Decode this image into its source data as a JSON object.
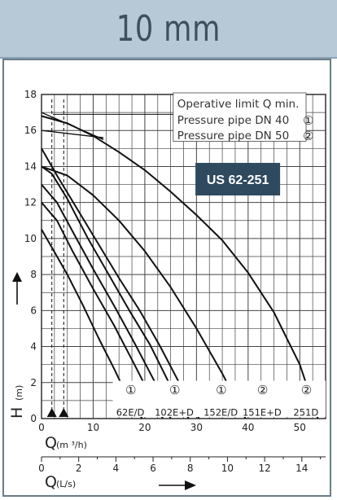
{
  "header": {
    "title": "10 mm"
  },
  "colors": {
    "header_bg": "#b7c9d7",
    "badge_bg": "#2f4a5f",
    "curve": "#111111",
    "grid": "#333333"
  },
  "chart_data": {
    "type": "line",
    "badge": "US 62-251",
    "x_axis": {
      "label": "Q",
      "unit": "(m ³/h)",
      "range": [
        0,
        55
      ],
      "ticks": [
        0,
        10,
        20,
        30,
        40,
        50
      ],
      "tick_labels": [
        "0",
        "10",
        "20",
        "30",
        "40",
        "50"
      ]
    },
    "x2_axis": {
      "label": "Q",
      "unit": "(L/s)",
      "ticks": [
        0,
        2,
        4,
        6,
        8,
        10,
        12,
        14
      ],
      "tick_labels": [
        "0",
        "2",
        "4",
        "6",
        "8",
        "10",
        "12",
        "14"
      ]
    },
    "y_axis": {
      "label": "H",
      "unit": "(m)",
      "range": [
        0,
        18
      ],
      "ticks": [
        0,
        2,
        4,
        6,
        8,
        10,
        12,
        14,
        16,
        18
      ],
      "tick_labels": [
        "0",
        "2",
        "4",
        "6",
        "8",
        "10",
        "12",
        "14",
        "16",
        "18"
      ]
    },
    "grid": true,
    "legend": [
      {
        "text": "Operative limit Q min.",
        "symbol": ""
      },
      {
        "text": "Pressure pipe DN 40",
        "symbol": "①"
      },
      {
        "text": "Pressure pipe DN 50",
        "symbol": "②"
      }
    ],
    "series": [
      {
        "name": "62E/D",
        "symbol": "①",
        "x": [
          0,
          2,
          5,
          8,
          11,
          14,
          17,
          19.5
        ],
        "y": [
          10.5,
          9.5,
          8.0,
          6.3,
          4.5,
          2.8,
          1.0,
          0
        ]
      },
      {
        "name": "102E+D",
        "symbol": "①",
        "x": [
          0,
          3,
          6,
          10,
          14,
          18,
          21,
          23.5
        ],
        "y": [
          12.0,
          11.0,
          9.3,
          7.2,
          5.2,
          3.0,
          1.3,
          0
        ]
      },
      {
        "name": "102E+D",
        "symbol": "①",
        "x": [
          0,
          3,
          6,
          10,
          14,
          18,
          22,
          25
        ],
        "y": [
          13.0,
          12.0,
          10.4,
          8.3,
          6.3,
          4.2,
          2.0,
          0
        ]
      },
      {
        "name": "152E/D",
        "symbol": "①",
        "x": [
          0,
          2,
          5,
          9,
          13,
          17,
          21,
          25,
          28.5
        ],
        "y": [
          14.0,
          13.6,
          12.2,
          10.0,
          8.0,
          6.0,
          4.1,
          1.8,
          0
        ]
      },
      {
        "name": "152E/D",
        "symbol": "①",
        "x": [
          0,
          3,
          7,
          11,
          15,
          19,
          23,
          27,
          30.5
        ],
        "y": [
          15.0,
          13.5,
          11.6,
          9.7,
          7.8,
          6.0,
          4.0,
          1.8,
          0
        ]
      },
      {
        "name": "151E+D",
        "symbol": "②",
        "x": [
          0,
          5,
          10,
          15,
          20,
          25,
          30,
          35,
          39.5
        ],
        "y": [
          14.0,
          13.5,
          12.4,
          11.0,
          9.3,
          7.3,
          5.0,
          2.5,
          0
        ]
      },
      {
        "name": "251D",
        "symbol": "②",
        "x": [
          0,
          5,
          10,
          15,
          20,
          25,
          30,
          35,
          40,
          45,
          50,
          53.5
        ],
        "y": [
          16.8,
          16.4,
          15.7,
          14.8,
          13.8,
          12.6,
          11.3,
          9.9,
          8.1,
          5.9,
          3.0,
          0
        ]
      }
    ],
    "pipe_lines": [
      {
        "name": "Pressure pipe DN 40",
        "x": [
          0,
          12
        ],
        "y": [
          17.0,
          15.5
        ]
      },
      {
        "name": "Pressure pipe DN 50",
        "x": [
          0,
          12
        ],
        "y": [
          16.0,
          15.6
        ]
      }
    ],
    "operative_limit_q_min": [
      2.0,
      4.3
    ],
    "curve_labels": [
      {
        "symbol": "①",
        "text": "62E/D",
        "x": 17.5
      },
      {
        "symbol": "①",
        "text": "102E+D",
        "x": 26
      },
      {
        "symbol": "①",
        "text": "152E/D",
        "x": 35
      },
      {
        "symbol": "②",
        "text": "151E+D",
        "x": 43
      },
      {
        "symbol": "②",
        "text": "251D",
        "x": 51.5
      }
    ]
  }
}
